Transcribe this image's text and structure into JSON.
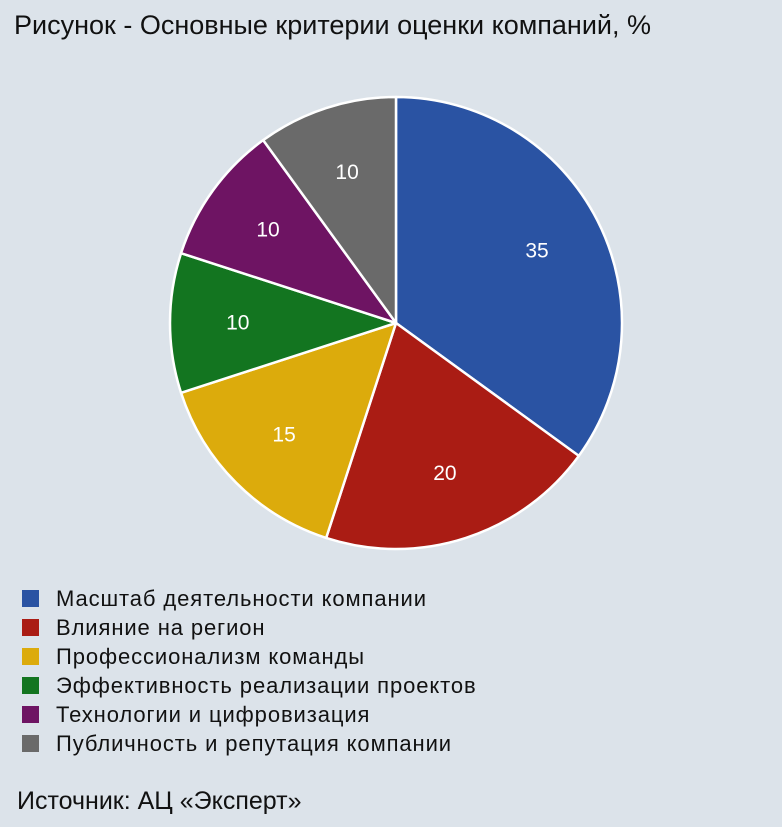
{
  "chart_data": {
    "type": "pie",
    "title": "Рисунок - Основные критерии оценки компаний, %",
    "source": "Источник: АЦ «Эксперт»",
    "legend_position": "bottom-left",
    "slices": [
      {
        "label": "Масштаб деятельности компании",
        "value": 35,
        "color": "#2a53a3"
      },
      {
        "label": "Влияние на регион",
        "value": 20,
        "color": "#aa1c14"
      },
      {
        "label": "Профессионализм команды",
        "value": 15,
        "color": "#dcab0c"
      },
      {
        "label": "Эффективность реализации проектов",
        "value": 10,
        "color": "#137520"
      },
      {
        "label": "Технологии и цифровизация",
        "value": 10,
        "color": "#6e1463"
      },
      {
        "label": "Публичность и репутация компании",
        "value": 10,
        "color": "#6a6a6a"
      }
    ]
  }
}
